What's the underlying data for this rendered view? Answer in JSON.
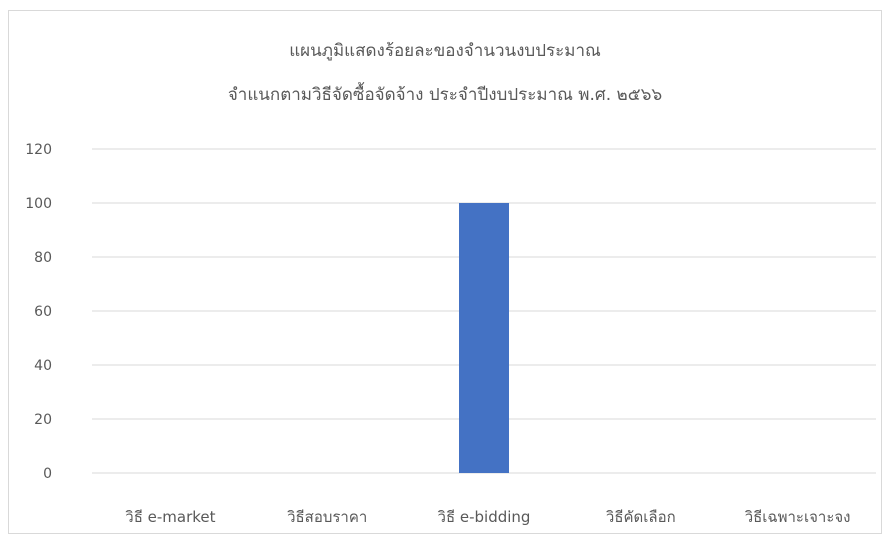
{
  "chart_data": {
    "type": "bar",
    "title": "แผนภูมิแสดงร้อยละของจำนวนงบประมาณ",
    "subtitle": "จำแนกตามวิธีจัดซื้อจัดจ้าง ประจำปีงบประมาณ พ.ศ. ๒๕๖๖",
    "categories": [
      "วิธี e-market",
      "วิธีสอบราคา",
      "วิธี e-bidding",
      "วิธีคัดเลือก",
      "วิธีเฉพาะเจาะจง"
    ],
    "values": [
      0,
      0,
      100,
      0,
      0
    ],
    "ylim": [
      0,
      120
    ],
    "yticks": [
      0,
      20,
      40,
      60,
      80,
      100,
      120
    ],
    "grid": true,
    "bar_color": "#4472c4",
    "grid_color": "#d9d9d9",
    "text_color": "#595959"
  }
}
